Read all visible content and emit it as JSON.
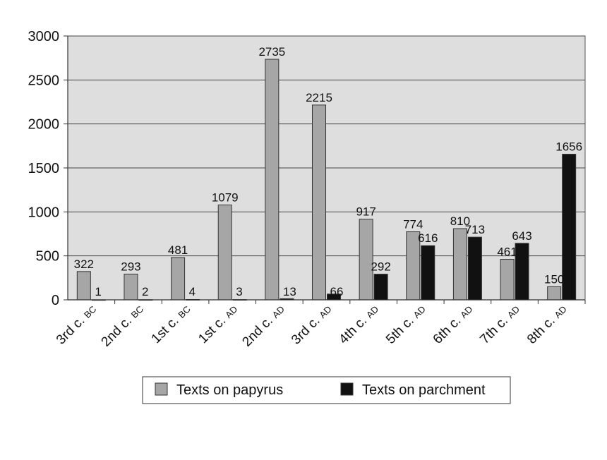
{
  "chart_data": {
    "type": "bar",
    "title": "",
    "xlabel": "",
    "ylabel": "",
    "ylim": [
      0,
      3000
    ],
    "yticks": [
      "0",
      "500",
      "1000",
      "1500",
      "2000",
      "2500",
      "3000"
    ],
    "grid": true,
    "legend_position": "bottom",
    "categories": [
      {
        "main": "3rd c.",
        "sub": "BC"
      },
      {
        "main": "2nd c.",
        "sub": "BC"
      },
      {
        "main": "1st c.",
        "sub": "BC"
      },
      {
        "main": "1st c.",
        "sub": "AD"
      },
      {
        "main": "2nd c.",
        "sub": "AD"
      },
      {
        "main": "3rd c.",
        "sub": "AD"
      },
      {
        "main": "4th c.",
        "sub": "AD"
      },
      {
        "main": "5th c.",
        "sub": "AD"
      },
      {
        "main": "6th c.",
        "sub": "AD"
      },
      {
        "main": "7th c.",
        "sub": "AD"
      },
      {
        "main": "8th c.",
        "sub": "AD"
      }
    ],
    "series": [
      {
        "name": "Texts on papyrus",
        "color": "#a6a6a6",
        "values": [
          322,
          293,
          481,
          1079,
          2735,
          2215,
          917,
          774,
          810,
          461,
          150
        ]
      },
      {
        "name": "Texts on parchment",
        "color": "#111111",
        "values": [
          1,
          2,
          4,
          3,
          13,
          66,
          292,
          616,
          713,
          643,
          1656
        ]
      }
    ],
    "plot_background": "#dedede"
  }
}
